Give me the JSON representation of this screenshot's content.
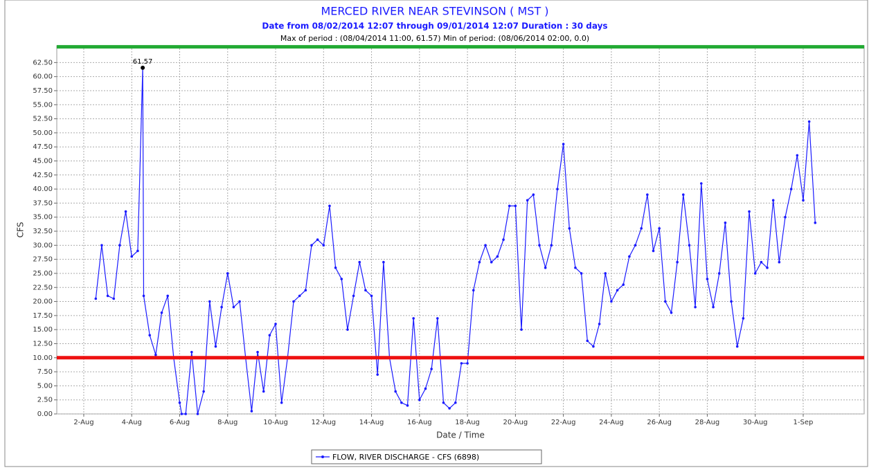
{
  "chart_data": {
    "type": "line",
    "title": "MERCED RIVER NEAR STEVINSON ( MST )",
    "subtitle": "Date from 08/02/2014 12:07 through 09/01/2014 12:07 Duration : 30 days",
    "note": "Max of period : (08/04/2014 11:00, 61.57)  Min of period: (08/06/2014 02:00,  0.0)",
    "x_label": "Date / Time",
    "y_label": "CFS",
    "annotations": [
      {
        "text": "61.57"
      }
    ],
    "grid": true,
    "legend": "bottom",
    "reference_lines": [
      {
        "value": 65.3,
        "color": "#22aa33"
      },
      {
        "value": 10,
        "color": "#ee1111"
      }
    ],
    "xlim": [
      "2014-07-31 21:00",
      "2014-09-03 13:00"
    ],
    "ylim": [
      0,
      65.5
    ],
    "xticks": [
      {
        "value": "2014-08-02 00:00",
        "label": "2-Aug"
      },
      {
        "value": "2014-08-04 00:00",
        "label": "4-Aug"
      },
      {
        "value": "2014-08-06 00:00",
        "label": "6-Aug"
      },
      {
        "value": "2014-08-08 00:00",
        "label": "8-Aug"
      },
      {
        "value": "2014-08-10 00:00",
        "label": "10-Aug"
      },
      {
        "value": "2014-08-12 00:00",
        "label": "12-Aug"
      },
      {
        "value": "2014-08-14 00:00",
        "label": "14-Aug"
      },
      {
        "value": "2014-08-16 00:00",
        "label": "16-Aug"
      },
      {
        "value": "2014-08-18 00:00",
        "label": "18-Aug"
      },
      {
        "value": "2014-08-20 00:00",
        "label": "20-Aug"
      },
      {
        "value": "2014-08-22 00:00",
        "label": "22-Aug"
      },
      {
        "value": "2014-08-24 00:00",
        "label": "24-Aug"
      },
      {
        "value": "2014-08-26 00:00",
        "label": "26-Aug"
      },
      {
        "value": "2014-08-28 00:00",
        "label": "28-Aug"
      },
      {
        "value": "2014-08-30 00:00",
        "label": "30-Aug"
      },
      {
        "value": "2014-09-01 00:00",
        "label": "1-Sep"
      }
    ],
    "yticks": [
      {
        "value": 0,
        "label": "0.00"
      },
      {
        "value": 2.5,
        "label": "2.50"
      },
      {
        "value": 5,
        "label": "5.00"
      },
      {
        "value": 7.5,
        "label": "7.50"
      },
      {
        "value": 10,
        "label": "10.00"
      },
      {
        "value": 12.5,
        "label": "12.50"
      },
      {
        "value": 15,
        "label": "15.00"
      },
      {
        "value": 17.5,
        "label": "17.50"
      },
      {
        "value": 20,
        "label": "20.00"
      },
      {
        "value": 22.5,
        "label": "22.50"
      },
      {
        "value": 25,
        "label": "25.00"
      },
      {
        "value": 27.5,
        "label": "27.50"
      },
      {
        "value": 30,
        "label": "30.00"
      },
      {
        "value": 32.5,
        "label": "32.50"
      },
      {
        "value": 35,
        "label": "35.00"
      },
      {
        "value": 37.5,
        "label": "37.50"
      },
      {
        "value": 40,
        "label": "40.00"
      },
      {
        "value": 42.5,
        "label": "42.50"
      },
      {
        "value": 45,
        "label": "45.00"
      },
      {
        "value": 47.5,
        "label": "47.50"
      },
      {
        "value": 50,
        "label": "50.00"
      },
      {
        "value": 52.5,
        "label": "52.50"
      },
      {
        "value": 55,
        "label": "55.00"
      },
      {
        "value": 57.5,
        "label": "57.50"
      },
      {
        "value": 60,
        "label": "60.00"
      },
      {
        "value": 62.5,
        "label": "62.50"
      }
    ],
    "x": [
      "2014-08-02 12:00",
      "2014-08-02 18:00",
      "2014-08-03 00:00",
      "2014-08-03 06:00",
      "2014-08-03 12:00",
      "2014-08-03 18:00",
      "2014-08-04 00:00",
      "2014-08-04 06:00",
      "2014-08-04 11:00",
      "2014-08-04 12:00",
      "2014-08-04 18:00",
      "2014-08-05 00:00",
      "2014-08-05 06:00",
      "2014-08-05 12:00",
      "2014-08-05 18:00",
      "2014-08-06 00:00",
      "2014-08-06 02:00",
      "2014-08-06 06:00",
      "2014-08-06 12:00",
      "2014-08-06 18:00",
      "2014-08-07 00:00",
      "2014-08-07 06:00",
      "2014-08-07 12:00",
      "2014-08-07 18:00",
      "2014-08-08 00:00",
      "2014-08-08 06:00",
      "2014-08-08 12:00",
      "2014-08-08 18:00",
      "2014-08-09 00:00",
      "2014-08-09 06:00",
      "2014-08-09 12:00",
      "2014-08-09 18:00",
      "2014-08-10 00:00",
      "2014-08-10 06:00",
      "2014-08-10 12:00",
      "2014-08-10 18:00",
      "2014-08-11 00:00",
      "2014-08-11 06:00",
      "2014-08-11 12:00",
      "2014-08-11 18:00",
      "2014-08-12 00:00",
      "2014-08-12 06:00",
      "2014-08-12 12:00",
      "2014-08-12 18:00",
      "2014-08-13 00:00",
      "2014-08-13 06:00",
      "2014-08-13 12:00",
      "2014-08-13 18:00",
      "2014-08-14 00:00",
      "2014-08-14 06:00",
      "2014-08-14 12:00",
      "2014-08-14 18:00",
      "2014-08-15 00:00",
      "2014-08-15 06:00",
      "2014-08-15 12:00",
      "2014-08-15 18:00",
      "2014-08-16 00:00",
      "2014-08-16 06:00",
      "2014-08-16 12:00",
      "2014-08-16 18:00",
      "2014-08-17 00:00",
      "2014-08-17 06:00",
      "2014-08-17 12:00",
      "2014-08-17 18:00",
      "2014-08-18 00:00",
      "2014-08-18 06:00",
      "2014-08-18 12:00",
      "2014-08-18 18:00",
      "2014-08-19 00:00",
      "2014-08-19 06:00",
      "2014-08-19 12:00",
      "2014-08-19 18:00",
      "2014-08-20 00:00",
      "2014-08-20 06:00",
      "2014-08-20 12:00",
      "2014-08-20 18:00",
      "2014-08-21 00:00",
      "2014-08-21 06:00",
      "2014-08-21 12:00",
      "2014-08-21 18:00",
      "2014-08-22 00:00",
      "2014-08-22 06:00",
      "2014-08-22 12:00",
      "2014-08-22 18:00",
      "2014-08-23 00:00",
      "2014-08-23 06:00",
      "2014-08-23 12:00",
      "2014-08-23 18:00",
      "2014-08-24 00:00",
      "2014-08-24 06:00",
      "2014-08-24 12:00",
      "2014-08-24 18:00",
      "2014-08-25 00:00",
      "2014-08-25 06:00",
      "2014-08-25 12:00",
      "2014-08-25 18:00",
      "2014-08-26 00:00",
      "2014-08-26 06:00",
      "2014-08-26 12:00",
      "2014-08-26 18:00",
      "2014-08-27 00:00",
      "2014-08-27 06:00",
      "2014-08-27 12:00",
      "2014-08-27 18:00",
      "2014-08-28 00:00",
      "2014-08-28 06:00",
      "2014-08-28 12:00",
      "2014-08-28 18:00",
      "2014-08-29 00:00",
      "2014-08-29 06:00",
      "2014-08-29 12:00",
      "2014-08-29 18:00",
      "2014-08-30 00:00",
      "2014-08-30 06:00",
      "2014-08-30 12:00",
      "2014-08-30 18:00",
      "2014-08-31 00:00",
      "2014-08-31 06:00",
      "2014-08-31 12:00",
      "2014-08-31 18:00",
      "2014-09-01 00:00",
      "2014-09-01 06:00",
      "2014-09-01 12:00"
    ],
    "series": [
      {
        "name": "FLOW, RIVER DISCHARGE - CFS (6898)",
        "color": "#1a1aff",
        "values": [
          20.5,
          30,
          21,
          20.5,
          30,
          36,
          28,
          29,
          61.57,
          21,
          14,
          10.5,
          18,
          21,
          10,
          2,
          0.0,
          0,
          11,
          0,
          4,
          20,
          12,
          19,
          25,
          19,
          20,
          10,
          0.5,
          11,
          4,
          14,
          16,
          2,
          10,
          20,
          21,
          22,
          30,
          31,
          30,
          37,
          26,
          24,
          15,
          21,
          27,
          22,
          21,
          7,
          27,
          10,
          4,
          2,
          1.5,
          17,
          2.5,
          4.5,
          8,
          17,
          2,
          1,
          2,
          9,
          9,
          22,
          27,
          30,
          27,
          28,
          31,
          37,
          37,
          15,
          38,
          39,
          30,
          26,
          30,
          40,
          48,
          33,
          26,
          25,
          13,
          12,
          16,
          25,
          20,
          22,
          23,
          28,
          30,
          33,
          39,
          29,
          33,
          20,
          18,
          27,
          39,
          30,
          19,
          41,
          24,
          19,
          25,
          34,
          20,
          12,
          17,
          36,
          25,
          27,
          26,
          38,
          27,
          35,
          40,
          46,
          38,
          52,
          34
        ]
      }
    ]
  }
}
